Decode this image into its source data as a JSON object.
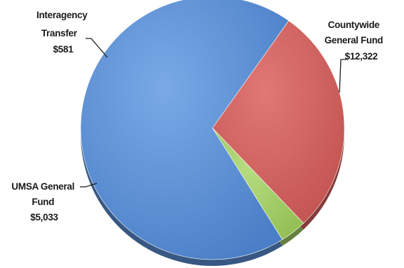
{
  "chart_data": {
    "type": "pie",
    "title": "",
    "slices": [
      {
        "label_lines": [
          "Countywide",
          "General Fund",
          "$12,322"
        ],
        "value": 12322,
        "color": "#5a8ed4"
      },
      {
        "label_lines": [
          "UMSA General",
          "Fund",
          "$5,033"
        ],
        "value": 5033,
        "color": "#d6605d"
      },
      {
        "label_lines": [
          "Interagency",
          "Transfer",
          "$581"
        ],
        "value": 581,
        "color": "#a3cf66"
      }
    ],
    "legend": "none",
    "units": "$"
  }
}
